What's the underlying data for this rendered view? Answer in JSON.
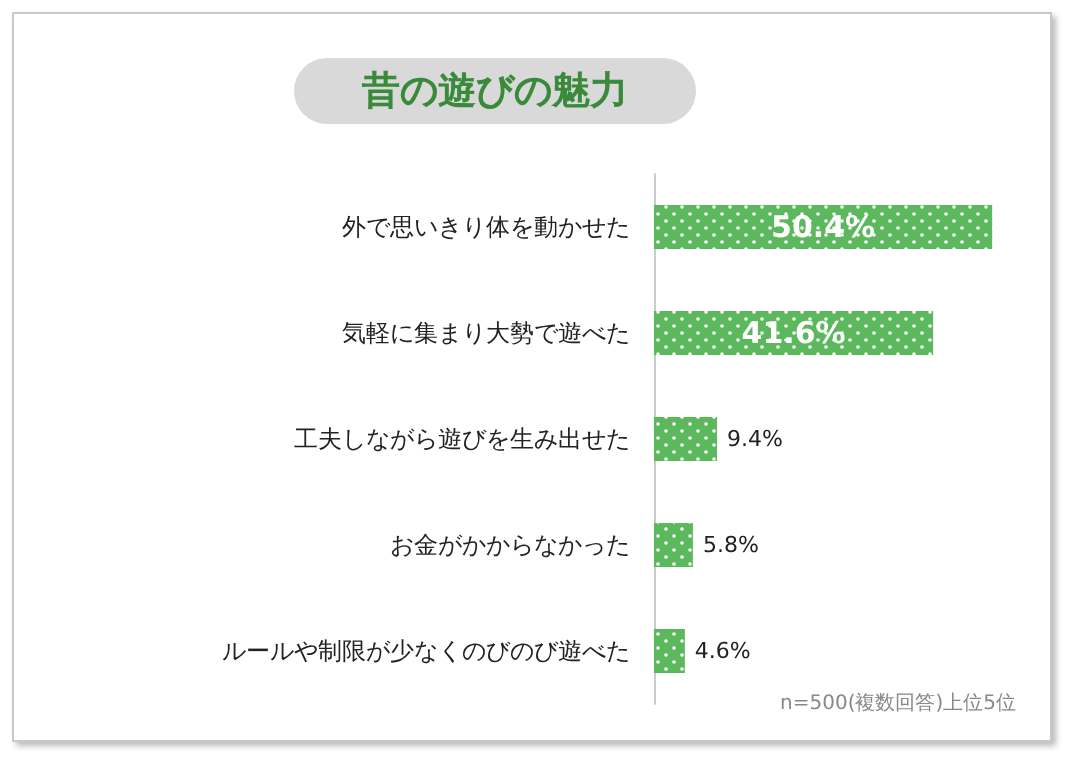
{
  "chart_data": {
    "type": "bar",
    "orientation": "horizontal",
    "title": "昔の遊びの魅力",
    "categories": [
      "外で思いきり体を動かせた",
      "気軽に集まり大勢で遊べた",
      "工夫しながら遊びを生み出せた",
      "お金がかからなかった",
      "ルールや制限が少なくのびのび遊べた"
    ],
    "values": [
      50.4,
      41.6,
      9.4,
      5.8,
      4.6
    ],
    "value_labels": [
      "50.4%",
      "41.6%",
      "9.4%",
      "5.8%",
      "4.6%"
    ],
    "color": "#5cb85c",
    "annotations": [
      "n=500(複数回答)上位5位"
    ]
  }
}
